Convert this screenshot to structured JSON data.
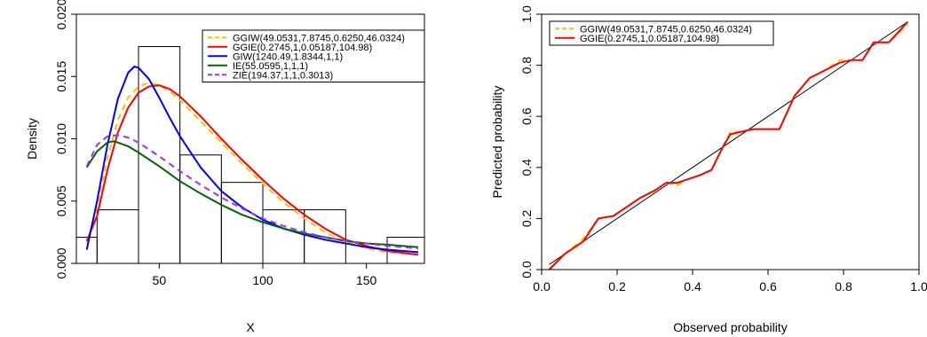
{
  "chart_data": [
    {
      "type": "line",
      "title": "",
      "xlabel": "X",
      "ylabel": "Density",
      "xlim": [
        10,
        178
      ],
      "ylim": [
        0,
        0.02
      ],
      "x_ticks": [
        50,
        100,
        150
      ],
      "y_ticks": [
        0.0,
        0.005,
        0.01,
        0.015,
        0.02
      ],
      "y_tick_labels": [
        "0.000",
        "0.005",
        "0.010",
        "0.015",
        "0.020"
      ],
      "grid": false,
      "legend_position": "top-right",
      "histogram": {
        "bin_edges": [
          10,
          20,
          40,
          60,
          80,
          100,
          120,
          140,
          160,
          180
        ],
        "density": [
          0.0021,
          0.0043,
          0.0174,
          0.0087,
          0.0065,
          0.0043,
          0.0043,
          0.0,
          0.0021
        ]
      },
      "series": [
        {
          "name": "GGIW(49.0531,7.8745,0.6250,46.0324)",
          "color": "#FFC000",
          "dash": "dashed",
          "x": [
            15,
            20,
            25,
            30,
            35,
            40,
            45,
            50,
            55,
            60,
            70,
            80,
            90,
            100,
            110,
            120,
            130,
            140,
            150,
            160,
            175
          ],
          "y": [
            0.0016,
            0.0045,
            0.0085,
            0.0115,
            0.0133,
            0.0142,
            0.0145,
            0.0143,
            0.0138,
            0.0131,
            0.0114,
            0.0097,
            0.008,
            0.0064,
            0.0049,
            0.0036,
            0.0025,
            0.0017,
            0.0012,
            0.0009,
            0.0007
          ]
        },
        {
          "name": "GGIE(0.2745,1,0.05187,104.98)",
          "color": "#FF0000",
          "dash": "solid",
          "x": [
            15,
            20,
            25,
            30,
            35,
            40,
            45,
            50,
            55,
            60,
            70,
            80,
            90,
            100,
            110,
            120,
            130,
            140,
            150,
            160,
            175
          ],
          "y": [
            0.0018,
            0.0038,
            0.0075,
            0.0105,
            0.0125,
            0.0137,
            0.0142,
            0.0143,
            0.014,
            0.0134,
            0.0118,
            0.01,
            0.0083,
            0.0067,
            0.0052,
            0.0039,
            0.0028,
            0.0019,
            0.0014,
            0.001,
            0.0007
          ]
        },
        {
          "name": "GIW(1240.49,1.8344,1,1)",
          "color": "#0000FF",
          "dash": "solid",
          "x": [
            15,
            20,
            25,
            30,
            35,
            38,
            40,
            45,
            50,
            55,
            60,
            70,
            80,
            90,
            100,
            110,
            120,
            130,
            140,
            150,
            160,
            175
          ],
          "y": [
            0.0011,
            0.005,
            0.0095,
            0.0132,
            0.0153,
            0.0158,
            0.0157,
            0.0148,
            0.0133,
            0.0117,
            0.0102,
            0.0077,
            0.0058,
            0.0045,
            0.0035,
            0.0028,
            0.0023,
            0.0019,
            0.0016,
            0.0013,
            0.0011,
            0.0009
          ]
        },
        {
          "name": "IE(55.0595,1,1,1)",
          "color": "#006400",
          "dash": "solid",
          "x": [
            15,
            20,
            25,
            28,
            30,
            35,
            40,
            50,
            60,
            70,
            80,
            90,
            100,
            110,
            120,
            130,
            140,
            150,
            160,
            175
          ],
          "y": [
            0.0077,
            0.009,
            0.0097,
            0.0098,
            0.0097,
            0.0094,
            0.0089,
            0.0078,
            0.0066,
            0.0056,
            0.0047,
            0.0039,
            0.0033,
            0.0028,
            0.0024,
            0.0021,
            0.0018,
            0.0016,
            0.0015,
            0.0013
          ]
        },
        {
          "name": "ZIE(194.37,1,1,0.3013)",
          "color": "#9933FF",
          "dash": "dashed",
          "x": [
            15,
            20,
            25,
            30,
            35,
            40,
            50,
            60,
            70,
            80,
            90,
            100,
            110,
            120,
            130,
            140,
            150,
            160,
            175
          ],
          "y": [
            0.0078,
            0.0095,
            0.0102,
            0.0103,
            0.0101,
            0.0097,
            0.0086,
            0.0074,
            0.0063,
            0.0053,
            0.0044,
            0.0036,
            0.003,
            0.0025,
            0.0021,
            0.0018,
            0.0016,
            0.0014,
            0.0012
          ]
        }
      ]
    },
    {
      "type": "line",
      "title": "",
      "xlabel": "Observed probability",
      "ylabel": "Predicted probability",
      "xlim": [
        0,
        1
      ],
      "ylim": [
        0,
        1
      ],
      "x_ticks": [
        0.0,
        0.2,
        0.4,
        0.6,
        0.8,
        1.0
      ],
      "x_tick_labels": [
        "0.0",
        "0.2",
        "0.4",
        "0.6",
        "0.8",
        "1.0"
      ],
      "y_ticks": [
        0.0,
        0.2,
        0.4,
        0.6,
        0.8,
        1.0
      ],
      "y_tick_labels": [
        "0.0",
        "0.2",
        "0.4",
        "0.6",
        "0.8",
        "1.0"
      ],
      "grid": false,
      "legend_position": "top-left",
      "reference_line": {
        "x": [
          0.02,
          0.97
        ],
        "y": [
          0.02,
          0.97
        ],
        "color": "#000000"
      },
      "series": [
        {
          "name": "GGIW(49.0531,7.8745,0.6250,46.0324)",
          "color": "#FFC000",
          "dash": "dashed",
          "x": [
            0.02,
            0.06,
            0.11,
            0.15,
            0.19,
            0.22,
            0.26,
            0.3,
            0.33,
            0.36,
            0.38,
            0.42,
            0.45,
            0.48,
            0.5,
            0.53,
            0.56,
            0.6,
            0.63,
            0.67,
            0.71,
            0.75,
            0.79,
            0.82,
            0.85,
            0.88,
            0.92,
            0.97
          ],
          "y": [
            0.0,
            0.06,
            0.12,
            0.2,
            0.21,
            0.24,
            0.28,
            0.31,
            0.34,
            0.33,
            0.35,
            0.37,
            0.39,
            0.48,
            0.54,
            0.54,
            0.55,
            0.55,
            0.55,
            0.68,
            0.75,
            0.78,
            0.82,
            0.82,
            0.82,
            0.89,
            0.89,
            0.96
          ]
        },
        {
          "name": "GGIE(0.2745,1,0.05187,104.98)",
          "color": "#FF0000",
          "dash": "solid",
          "x": [
            0.02,
            0.06,
            0.11,
            0.15,
            0.19,
            0.22,
            0.26,
            0.3,
            0.33,
            0.36,
            0.38,
            0.42,
            0.45,
            0.48,
            0.5,
            0.53,
            0.56,
            0.6,
            0.63,
            0.67,
            0.71,
            0.75,
            0.79,
            0.82,
            0.85,
            0.88,
            0.92,
            0.97
          ],
          "y": [
            0.0,
            0.06,
            0.11,
            0.2,
            0.21,
            0.24,
            0.28,
            0.31,
            0.34,
            0.34,
            0.35,
            0.37,
            0.39,
            0.48,
            0.53,
            0.54,
            0.55,
            0.55,
            0.55,
            0.68,
            0.75,
            0.78,
            0.81,
            0.82,
            0.82,
            0.89,
            0.89,
            0.97
          ]
        }
      ]
    }
  ]
}
